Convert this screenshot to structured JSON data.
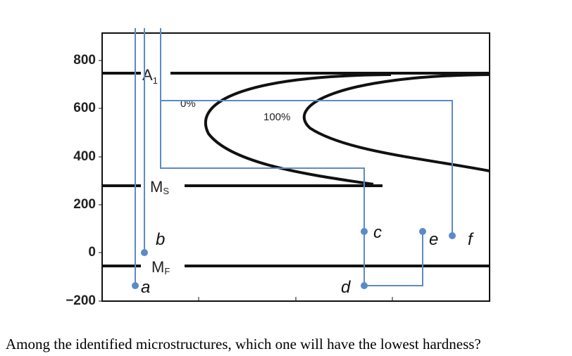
{
  "y_axis": {
    "ticks": [
      "800",
      "600",
      "400",
      "200",
      "0",
      "−200"
    ]
  },
  "curve_labels": {
    "a1": "A",
    "a1_sub": "1",
    "ms": "M",
    "ms_sub": "S",
    "mf": "M",
    "mf_sub": "F",
    "start": "0%",
    "finish": "100%"
  },
  "points": [
    "a",
    "b",
    "c",
    "d",
    "e",
    "f"
  ],
  "question": "Among the identified microstructures, which one will have the lowest hardness?"
}
